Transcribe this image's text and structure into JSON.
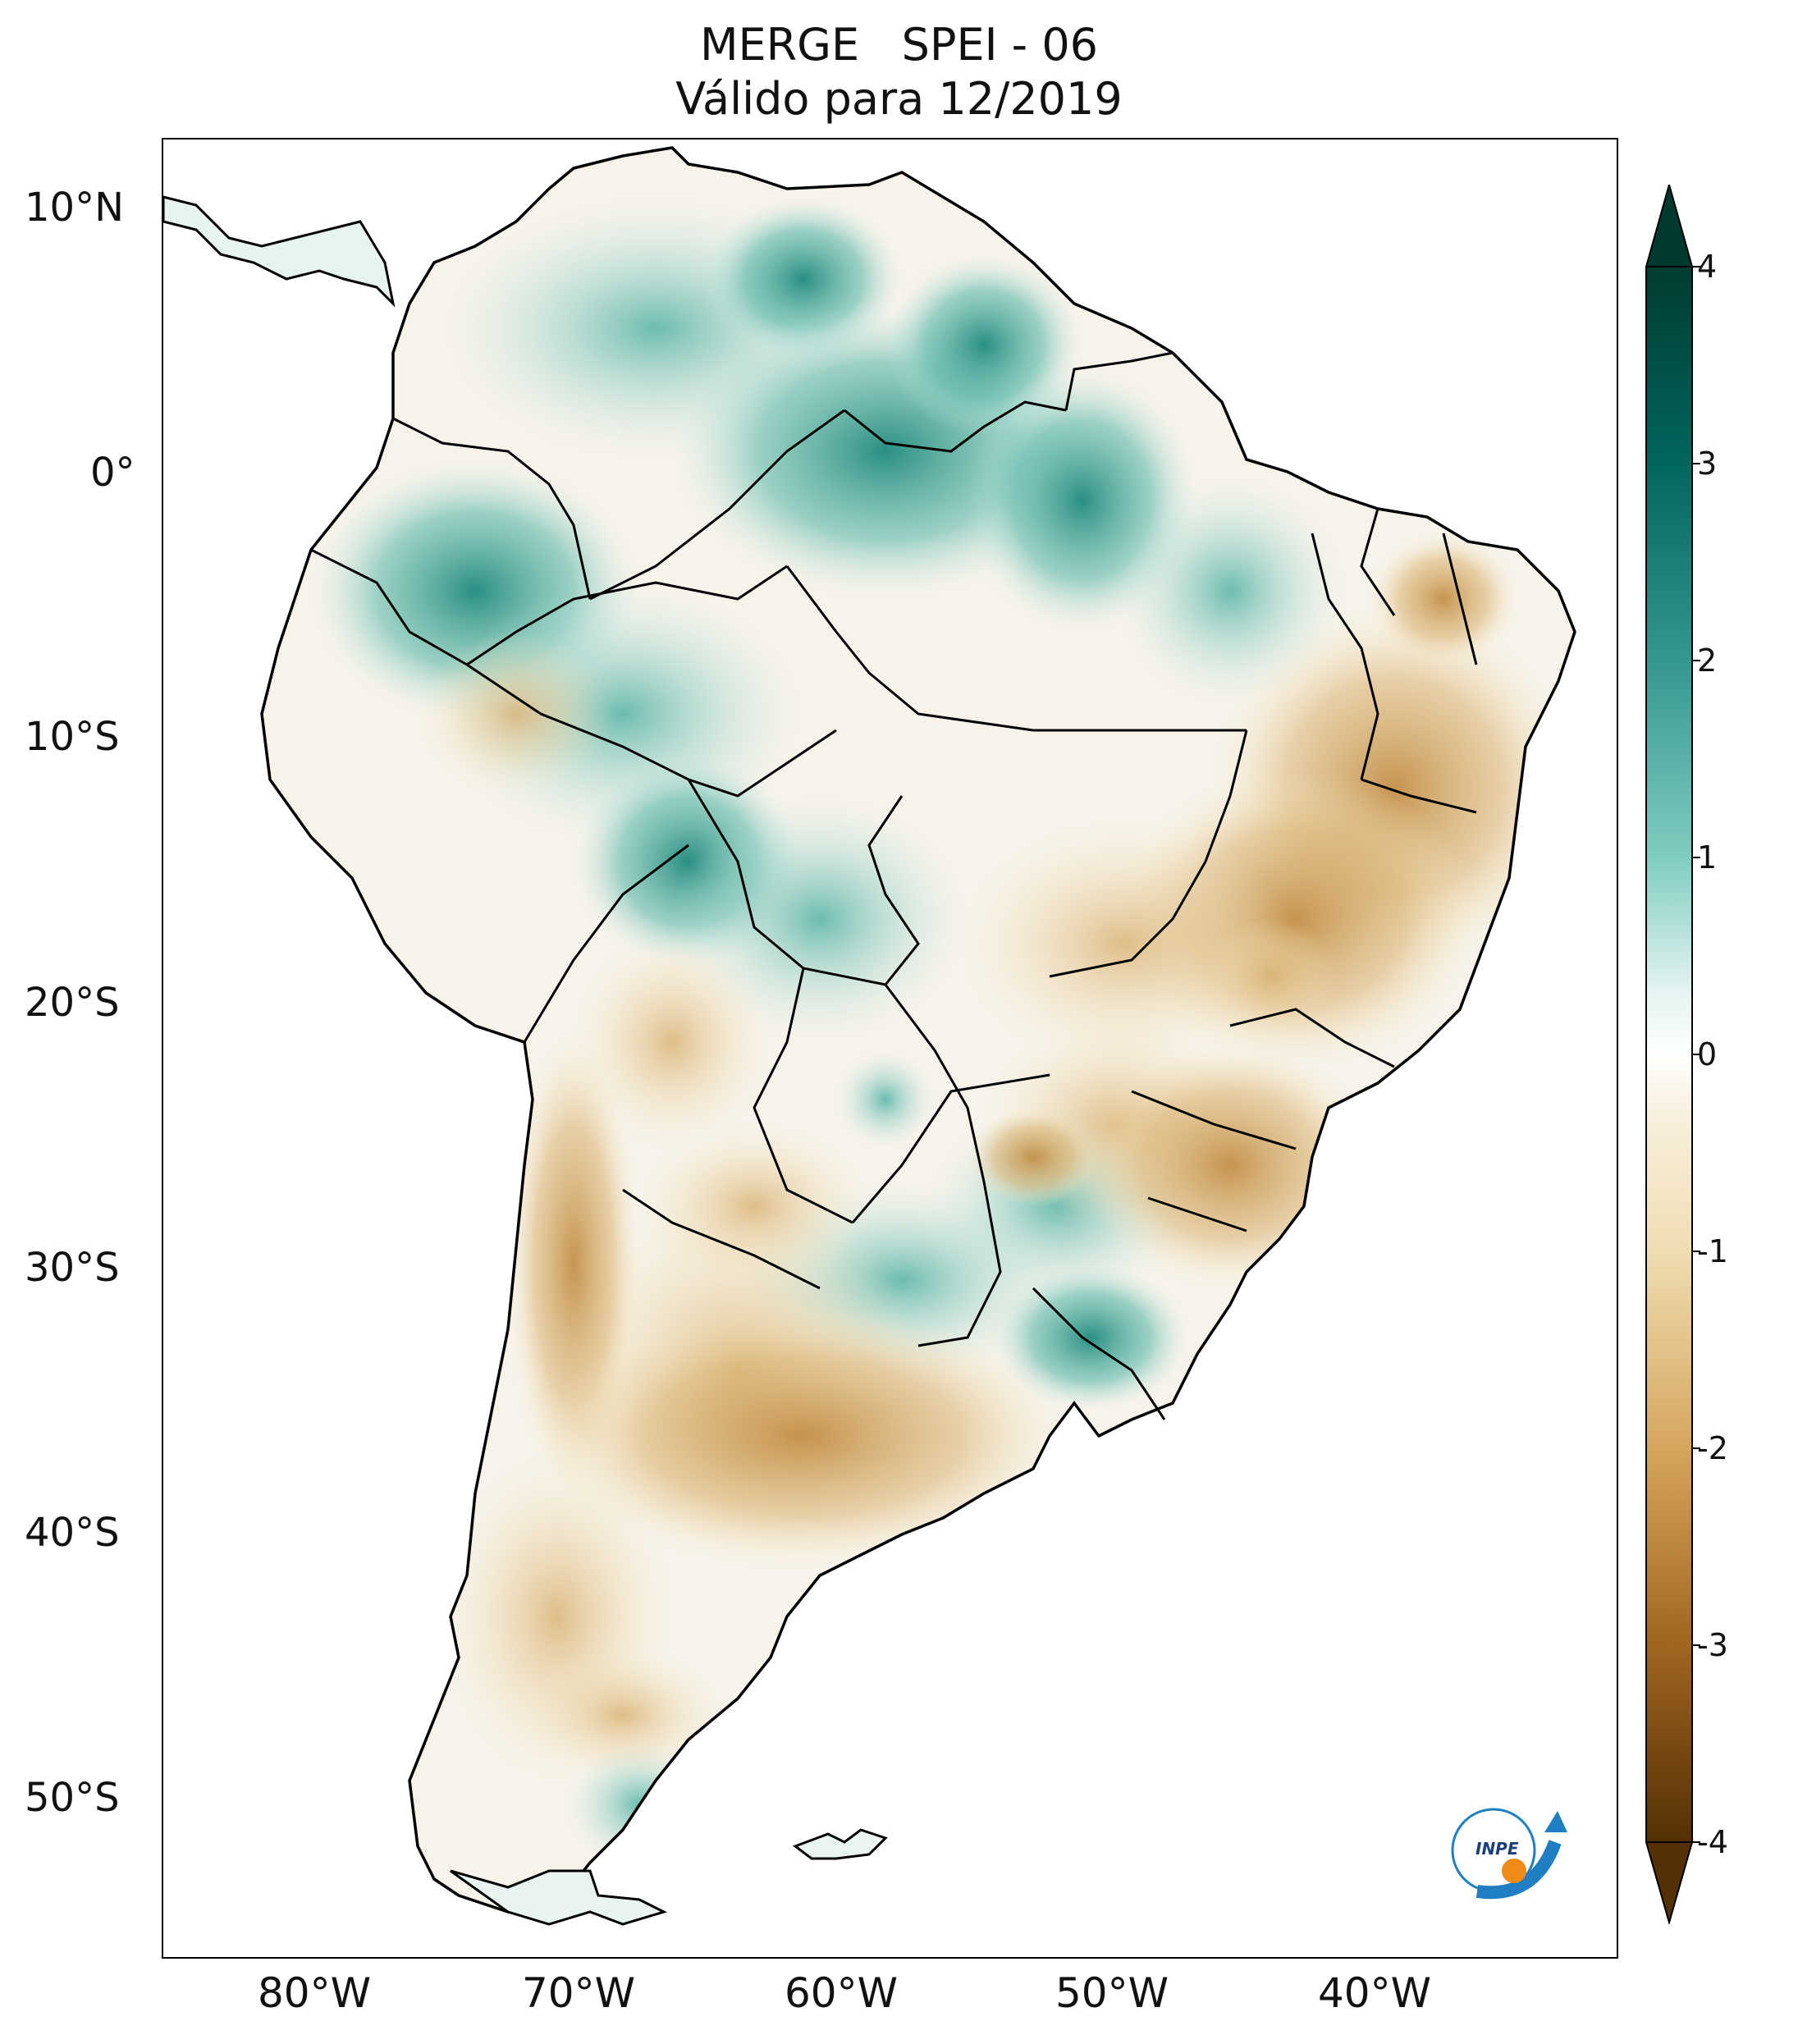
{
  "title": {
    "line1": "MERGE   SPEI - 06",
    "line2": "Válido para 12/2019"
  },
  "map": {
    "lat_labels": [
      "10°N",
      "0°",
      "10°S",
      "20°S",
      "30°S",
      "40°S",
      "50°S"
    ],
    "lon_labels": [
      "80°W",
      "70°W",
      "60°W",
      "50°W",
      "40°W"
    ]
  },
  "colorbar": {
    "ticks": [
      "4",
      "3",
      "2",
      "1",
      "0",
      "-1",
      "-2",
      "-3",
      "-4"
    ],
    "colors": {
      "max": "#00392f",
      "wet": "#35978f",
      "light_wet": "#c7eae5",
      "neutral": "#ffffff",
      "light_dry": "#f0ddb2",
      "dry": "#bf812d",
      "min": "#543005"
    }
  },
  "logo": {
    "text": "INPE"
  }
}
